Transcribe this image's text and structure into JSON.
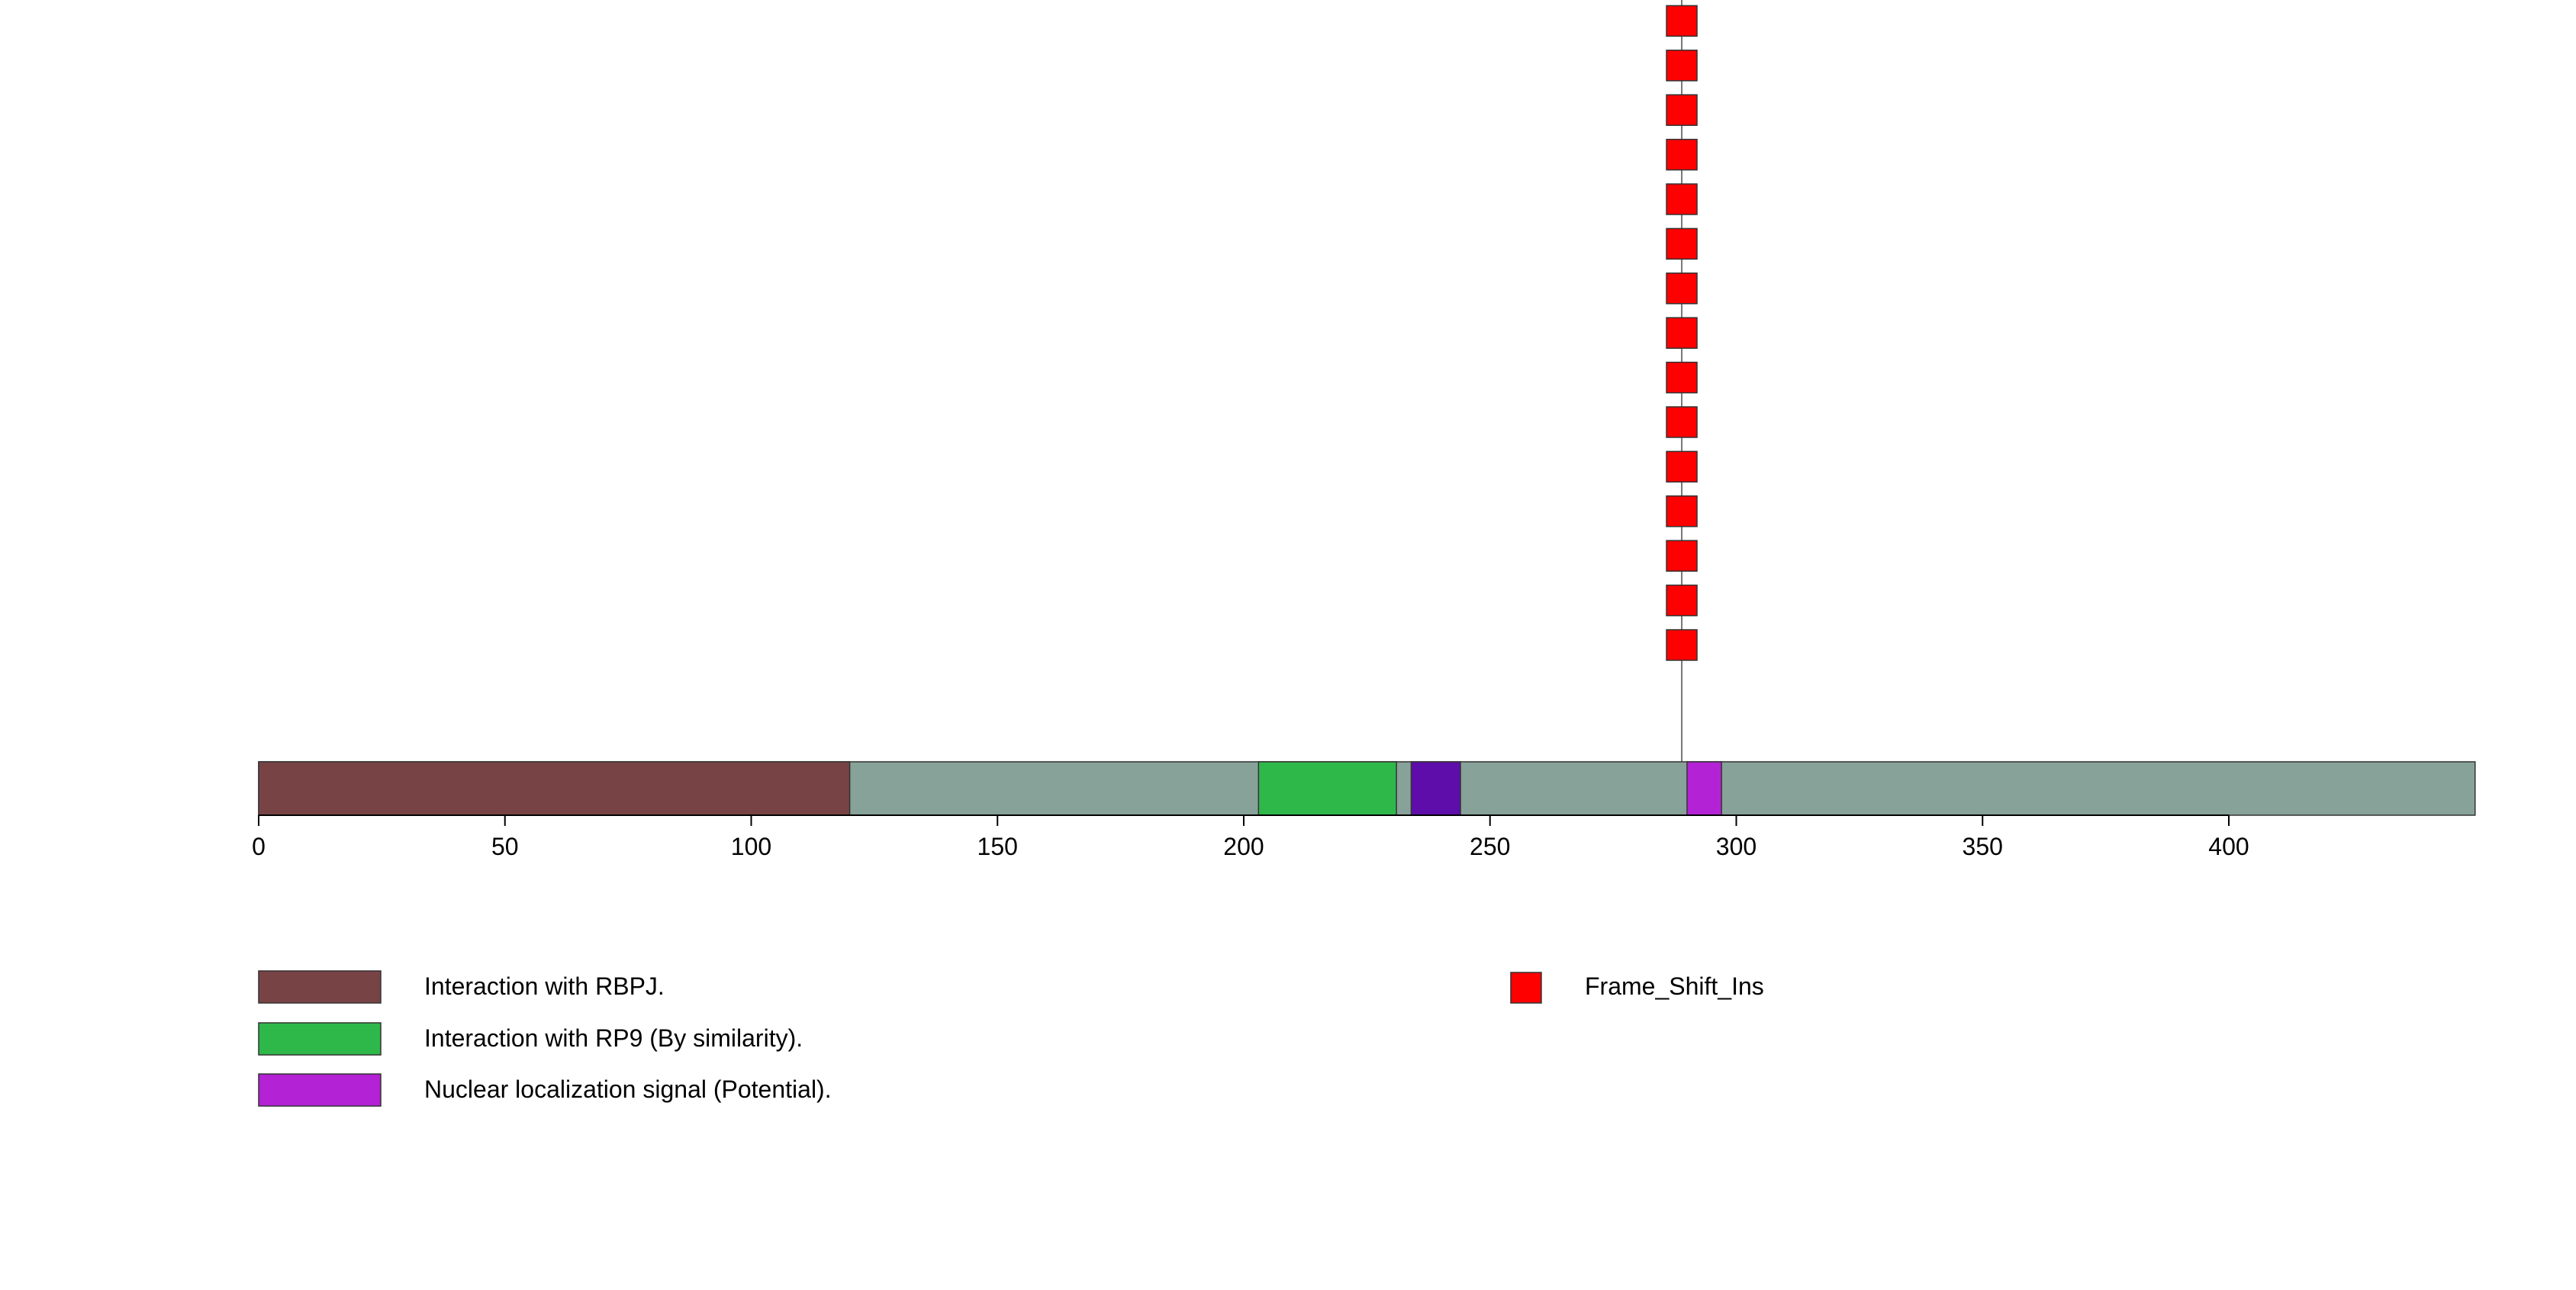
{
  "chart_data": {
    "type": "lollipop",
    "xlim": [
      0,
      450
    ],
    "protein_length": 450,
    "xticks": [
      0,
      50,
      100,
      150,
      200,
      250,
      300,
      350,
      400
    ],
    "domains": [
      {
        "name": "Interaction with RBPJ.",
        "start": 0,
        "end": 120,
        "color": "#784345"
      },
      {
        "name": "Interaction with RP9 (By similarity).",
        "start": 203,
        "end": 231,
        "color": "#2EB84A"
      },
      {
        "name": "Nuclear localization signal (Potential).",
        "start": 290,
        "end": 297,
        "color": "#B322D5"
      }
    ],
    "other_regions": [
      {
        "start": 234,
        "end": 244,
        "color": "#5E0DAB"
      }
    ],
    "backbone_color": "#87A298",
    "mutations": [
      {
        "position": 288,
        "type": "Frame_Shift_Ins",
        "count": 15,
        "color": "#FF0000"
      }
    ],
    "legend": {
      "domains": [
        {
          "label": "Interaction with RBPJ.",
          "color": "#784345"
        },
        {
          "label": "Interaction with RP9 (By similarity).",
          "color": "#2EB84A"
        },
        {
          "label": "Nuclear localization signal (Potential).",
          "color": "#B322D5"
        }
      ],
      "mutation_types": [
        {
          "label": "Frame_Shift_Ins",
          "color": "#FF0000"
        }
      ]
    }
  }
}
